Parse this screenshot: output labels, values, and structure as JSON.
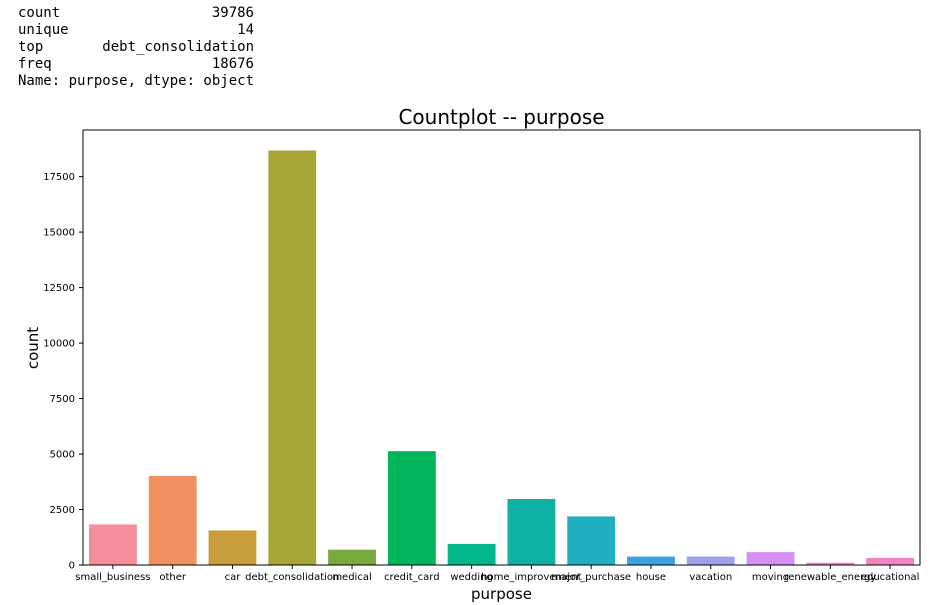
{
  "summary": {
    "rows": [
      {
        "key": "count",
        "value": "39786"
      },
      {
        "key": "unique",
        "value": "14"
      },
      {
        "key": "top",
        "value": "debt_consolidation"
      },
      {
        "key": "freq",
        "value": "18676"
      }
    ],
    "footer": "Name: purpose, dtype: object"
  },
  "chart_data": {
    "type": "bar",
    "title": "Countplot -- purpose",
    "xlabel": "purpose",
    "ylabel": "count",
    "ylim": [
      0,
      19600
    ],
    "yticks": [
      0,
      2500,
      5000,
      7500,
      10000,
      12500,
      15000,
      17500
    ],
    "grid": false,
    "categories": [
      "small_business",
      "other",
      "car",
      "debt_consolidation",
      "medical",
      "credit_card",
      "wedding",
      "home_improvement",
      "major_purchase",
      "house",
      "vacation",
      "moving",
      "renewable_energy",
      "educational"
    ],
    "values": [
      1830,
      4010,
      1560,
      18676,
      690,
      5130,
      950,
      2975,
      2190,
      380,
      380,
      580,
      100,
      320
    ],
    "colors": [
      "#f48e9d",
      "#ef9160",
      "#c99d3b",
      "#a6a535",
      "#79a93c",
      "#00b55b",
      "#00b68a",
      "#0eb1a4",
      "#21b0c1",
      "#3ba4e0",
      "#a09fee",
      "#d48ff2",
      "#f37fdc",
      "#f283be"
    ]
  }
}
